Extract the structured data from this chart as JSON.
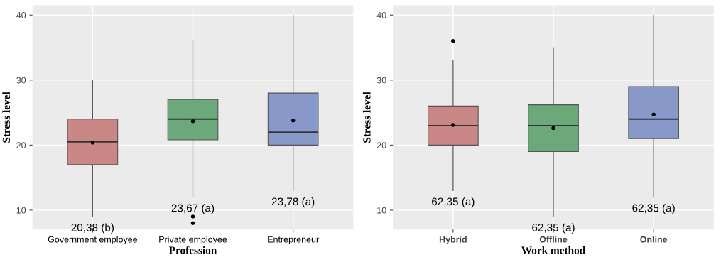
{
  "chart_data": [
    {
      "type": "box",
      "xlabel": "Profession",
      "ylabel": "Stress level",
      "categories": [
        "Government employee",
        "Private employee",
        "Entrepreneur"
      ],
      "colors": [
        "#c98886",
        "#6ba97b",
        "#8898c8"
      ],
      "boxes": [
        {
          "low": 9,
          "q1": 17,
          "median": 20.5,
          "q3": 24,
          "high": 30,
          "mean": 20.38
        },
        {
          "low": 12,
          "q1": 20.8,
          "median": 24,
          "q3": 27,
          "high": 36,
          "mean": 23.67,
          "outliers": [
            9,
            8
          ]
        },
        {
          "low": 13,
          "q1": 20,
          "median": 22,
          "q3": 28,
          "high": 40,
          "mean": 23.78
        }
      ],
      "ylim": [
        7,
        41.5
      ],
      "yticks": [
        10,
        20,
        30,
        40
      ],
      "grid": true,
      "legend": false,
      "annotations": [
        "20,38 (b)",
        "23,67 (a)",
        "23,78 (a)"
      ]
    },
    {
      "type": "box",
      "xlabel": "Work method",
      "ylabel": "Stress level",
      "categories": [
        "Hybrid",
        "Offline",
        "Online"
      ],
      "colors": [
        "#c98886",
        "#6ba97b",
        "#8898c8"
      ],
      "boxes": [
        {
          "low": 13,
          "q1": 20,
          "median": 23,
          "q3": 26,
          "high": 33,
          "mean": 23.1,
          "outliers": [
            36
          ]
        },
        {
          "low": 9,
          "q1": 19,
          "median": 23,
          "q3": 26.2,
          "high": 35,
          "mean": 22.6
        },
        {
          "low": 12,
          "q1": 21,
          "median": 24,
          "q3": 29,
          "high": 40,
          "mean": 24.7
        }
      ],
      "ylim": [
        7,
        41.5
      ],
      "yticks": [
        10,
        20,
        30,
        40
      ],
      "grid": true,
      "legend": false,
      "annotations": [
        "62,35 (a)",
        "62,35 (a)",
        "62,35 (a)"
      ]
    }
  ]
}
